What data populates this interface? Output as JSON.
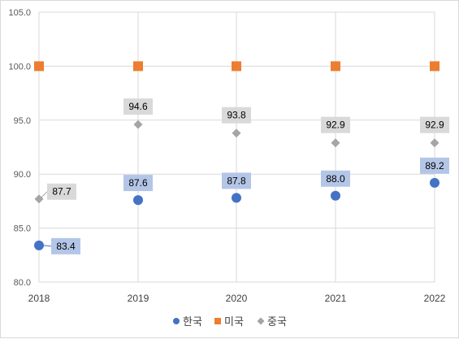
{
  "chart_data": {
    "type": "scatter",
    "title": "",
    "xlabel": "",
    "ylabel": "",
    "x": [
      "2018",
      "2019",
      "2020",
      "2021",
      "2022"
    ],
    "ylim": [
      80,
      105
    ],
    "yticks": [
      "80.0",
      "85.0",
      "90.0",
      "95.0",
      "100.0",
      "105.0"
    ],
    "grid": true,
    "legend": "bottom",
    "series": [
      {
        "name": "한국",
        "marker": "circle",
        "color": "#4472c4",
        "label_bg": "#b4c6e7",
        "values": [
          83.4,
          87.6,
          87.8,
          88.0,
          89.2
        ],
        "labels": [
          "83.4",
          "87.6",
          "87.8",
          "88.0",
          "89.2"
        ]
      },
      {
        "name": "미국",
        "marker": "square",
        "color": "#ed7d31",
        "values": [
          100.0,
          100.0,
          100.0,
          100.0,
          100.0
        ],
        "labels": []
      },
      {
        "name": "중국",
        "marker": "diamond",
        "color": "#a5a5a5",
        "label_bg": "#d9d9d9",
        "values": [
          87.7,
          94.6,
          93.8,
          92.9,
          92.9
        ],
        "labels": [
          "87.7",
          "94.6",
          "93.8",
          "92.9",
          "92.9"
        ]
      }
    ]
  }
}
